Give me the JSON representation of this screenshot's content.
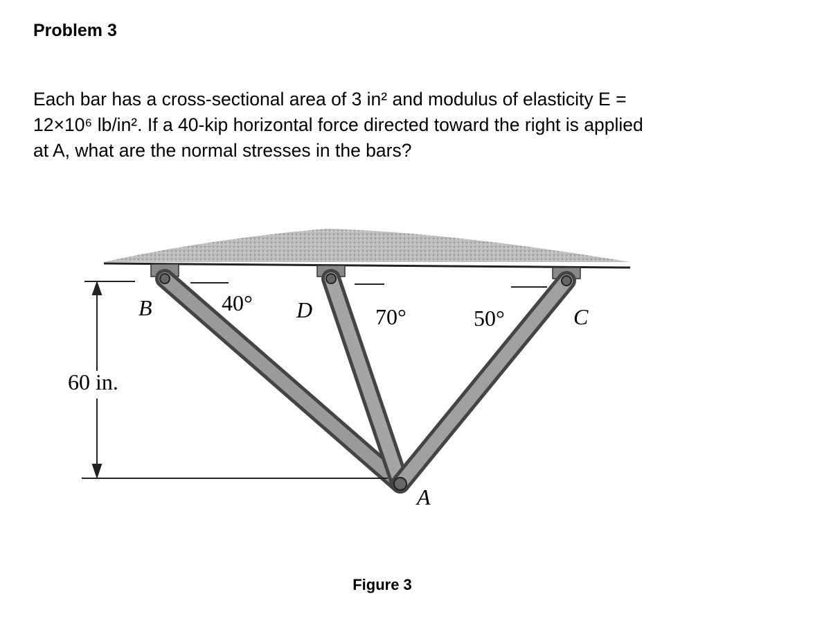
{
  "header": {
    "title": "Problem 3"
  },
  "problem": {
    "lines": [
      "Each bar has a cross-sectional area of 3 in² and modulus of elasticity E =",
      "12×10⁶ lb/in². If a 40-kip horizontal force directed toward the right is applied",
      "at A, what are the normal stresses in the bars?"
    ]
  },
  "figure": {
    "labels": {
      "b": "B",
      "angle_b": "40°",
      "d": "D",
      "angle_d": "70°",
      "angle_c": "50°",
      "c": "C",
      "height": "60 in.",
      "a": "A"
    },
    "caption": "Figure 3"
  }
}
